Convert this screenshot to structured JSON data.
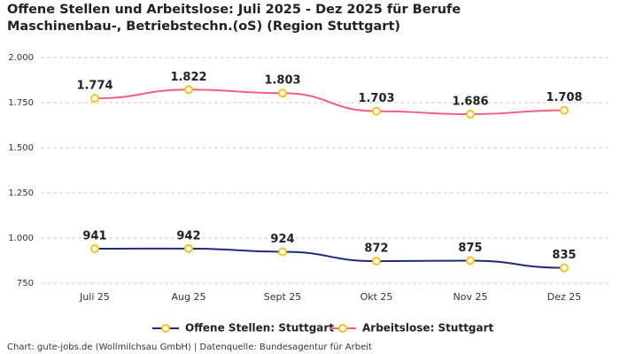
{
  "chart_data": {
    "type": "line",
    "title": "Offene Stellen und Arbeitslose: Juli 2025 - Dez 2025 für Berufe Maschinenbau-, Betriebstechn.(oS) (Region Stuttgart)",
    "source": "Chart: gute-jobs.de (Wollmilchsau GmbH) | Datenquelle: Bundesagentur für Arbeit",
    "categories": [
      "Juli 25",
      "Aug 25",
      "Sept 25",
      "Okt 25",
      "Nov 25",
      "Dez 25"
    ],
    "series": [
      {
        "name": "Offene Stellen: Stuttgart",
        "color": "#1f2a7a",
        "values": [
          941,
          942,
          924,
          872,
          875,
          835
        ]
      },
      {
        "name": "Arbeitslose: Stuttgart",
        "color": "#f06080",
        "values": [
          1774,
          1822,
          1803,
          1703,
          1686,
          1708
        ],
        "value_labels": [
          "1.774",
          "1.822",
          "1.803",
          "1.703",
          "1.686",
          "1.708"
        ]
      }
    ],
    "marker_color": "#f2c31b",
    "ylim": [
      750,
      2000
    ],
    "yticks": [
      750,
      {
        "value": 1000,
        "label": "1.000"
      },
      {
        "value": 1250,
        "label": "1.250"
      },
      {
        "value": 1500,
        "label": "1.500"
      },
      {
        "value": 1750,
        "label": "1.750"
      },
      {
        "value": 2000,
        "label": "2.000"
      }
    ],
    "grid": true
  }
}
